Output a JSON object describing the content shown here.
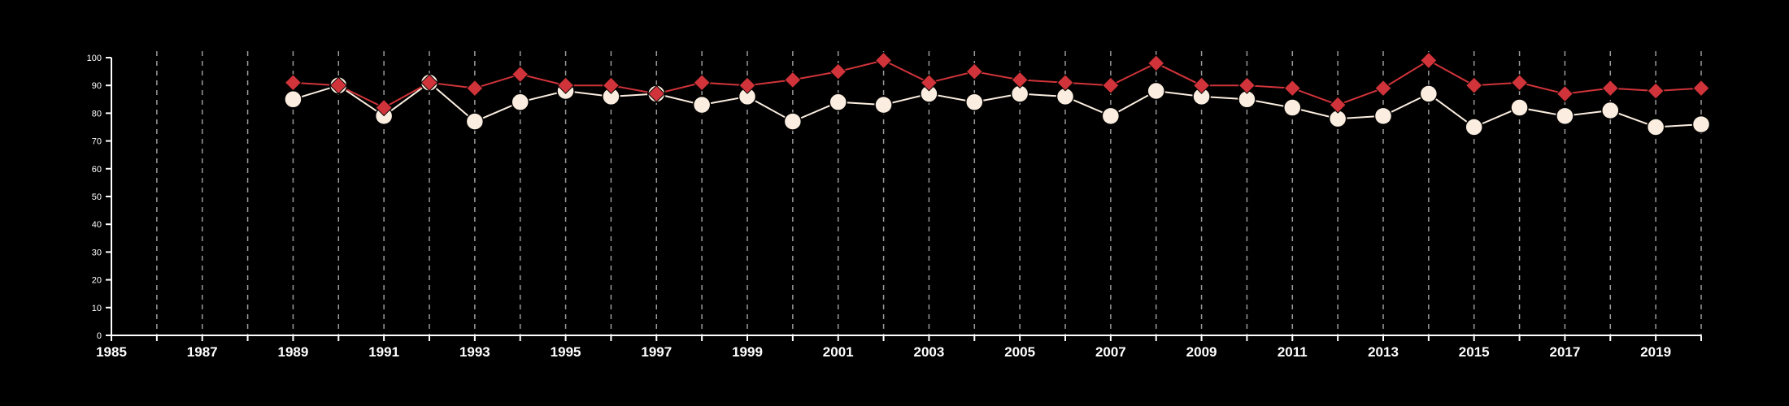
{
  "chart_data": {
    "type": "line",
    "title": "",
    "xlabel": "",
    "ylabel": "",
    "xlim": [
      1985,
      2020
    ],
    "ylim": [
      0,
      100
    ],
    "x_ticks": [
      1985,
      1987,
      1989,
      1991,
      1993,
      1995,
      1997,
      1999,
      2001,
      2003,
      2005,
      2007,
      2009,
      2011,
      2013,
      2015,
      2017,
      2019
    ],
    "y_ticks": [
      0,
      10,
      20,
      30,
      40,
      50,
      60,
      70,
      80,
      90,
      100
    ],
    "vertical_grid": true,
    "horizontal_grid": false,
    "x": [
      1989,
      1990,
      1991,
      1992,
      1993,
      1994,
      1995,
      1996,
      1997,
      1998,
      1999,
      2000,
      2001,
      2002,
      2003,
      2004,
      2005,
      2006,
      2007,
      2008,
      2009,
      2010,
      2011,
      2012,
      2013,
      2014,
      2015,
      2016,
      2017,
      2018,
      2019,
      2020
    ],
    "series": [
      {
        "marker": "diamond",
        "color": "#d0343a",
        "values": [
          91,
          90,
          82,
          91,
          89,
          94,
          90,
          90,
          87,
          91,
          90,
          92,
          95,
          99,
          91,
          95,
          92,
          91,
          90,
          98,
          90,
          90,
          89,
          83,
          89,
          99,
          90,
          91,
          87,
          89,
          88,
          89
        ]
      },
      {
        "marker": "circle",
        "color": "#fbeee0",
        "values": [
          85,
          90,
          79,
          91,
          77,
          84,
          88,
          86,
          87,
          83,
          86,
          77,
          84,
          83,
          87,
          84,
          87,
          86,
          79,
          88,
          86,
          85,
          82,
          78,
          79,
          87,
          75,
          82,
          79,
          81,
          75,
          76
        ]
      }
    ],
    "colors": {
      "background": "#000000",
      "axis": "#ffffff",
      "grid": "#9a9a9a"
    }
  }
}
